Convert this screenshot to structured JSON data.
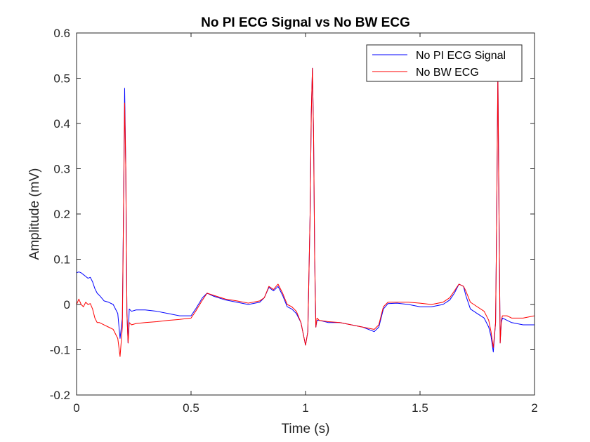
{
  "chart_data": {
    "type": "line",
    "title": "No PI ECG Signal vs No BW ECG",
    "xlabel": "Time (s)",
    "ylabel": "Amplitude (mV)",
    "xlim": [
      0,
      2
    ],
    "ylim": [
      -0.2,
      0.6
    ],
    "xticks": [
      0,
      0.5,
      1,
      1.5,
      2
    ],
    "xtick_labels": [
      "0",
      "0.5",
      "1",
      "1.5",
      "2"
    ],
    "yticks": [
      -0.2,
      -0.1,
      0,
      0.1,
      0.2,
      0.3,
      0.4,
      0.5,
      0.6
    ],
    "ytick_labels": [
      "-0.2",
      "-0.1",
      "0",
      "0.1",
      "0.2",
      "0.3",
      "0.4",
      "0.5",
      "0.6"
    ],
    "grid": false,
    "legend_position": "top-right",
    "series": [
      {
        "name": "No PI ECG Signal",
        "color": "#0000ff",
        "x": [
          0,
          0.01,
          0.02,
          0.03,
          0.04,
          0.05,
          0.06,
          0.07,
          0.08,
          0.09,
          0.1,
          0.12,
          0.14,
          0.16,
          0.18,
          0.19,
          0.2,
          0.205,
          0.21,
          0.215,
          0.22,
          0.225,
          0.23,
          0.24,
          0.26,
          0.3,
          0.35,
          0.4,
          0.45,
          0.5,
          0.52,
          0.55,
          0.57,
          0.6,
          0.65,
          0.7,
          0.75,
          0.8,
          0.82,
          0.84,
          0.86,
          0.88,
          0.9,
          0.92,
          0.94,
          0.96,
          0.98,
          1.0,
          1.01,
          1.02,
          1.025,
          1.03,
          1.035,
          1.04,
          1.045,
          1.05,
          1.06,
          1.1,
          1.15,
          1.2,
          1.25,
          1.3,
          1.32,
          1.34,
          1.36,
          1.4,
          1.45,
          1.5,
          1.55,
          1.6,
          1.63,
          1.65,
          1.67,
          1.69,
          1.7,
          1.72,
          1.75,
          1.78,
          1.8,
          1.81,
          1.82,
          1.83,
          1.835,
          1.84,
          1.845,
          1.85,
          1.855,
          1.86,
          1.88,
          1.9,
          1.95,
          2.0
        ],
        "values": [
          0.07,
          0.072,
          0.07,
          0.066,
          0.062,
          0.058,
          0.06,
          0.05,
          0.035,
          0.025,
          0.02,
          0.008,
          0.005,
          0.0,
          -0.02,
          -0.075,
          -0.03,
          0.2,
          0.478,
          0.3,
          -0.02,
          -0.085,
          -0.01,
          -0.015,
          -0.012,
          -0.012,
          -0.015,
          -0.02,
          -0.025,
          -0.025,
          -0.01,
          0.015,
          0.025,
          0.018,
          0.01,
          0.005,
          0.0,
          0.005,
          0.015,
          0.038,
          0.03,
          0.04,
          0.02,
          -0.005,
          -0.01,
          -0.02,
          -0.04,
          -0.09,
          -0.06,
          0.2,
          0.42,
          0.522,
          0.38,
          0.1,
          -0.05,
          -0.035,
          -0.035,
          -0.04,
          -0.04,
          -0.045,
          -0.05,
          -0.06,
          -0.05,
          -0.01,
          0.002,
          0.003,
          0.0,
          -0.005,
          -0.005,
          0.0,
          0.01,
          0.025,
          0.045,
          0.04,
          0.02,
          -0.01,
          -0.02,
          -0.03,
          -0.05,
          -0.07,
          -0.105,
          -0.04,
          0.2,
          0.522,
          0.2,
          -0.085,
          -0.04,
          -0.03,
          -0.035,
          -0.04,
          -0.045,
          -0.045
        ]
      },
      {
        "name": "No BW ECG",
        "color": "#ff0000",
        "x": [
          0,
          0.01,
          0.02,
          0.03,
          0.04,
          0.05,
          0.06,
          0.07,
          0.08,
          0.09,
          0.1,
          0.12,
          0.14,
          0.16,
          0.18,
          0.19,
          0.2,
          0.205,
          0.21,
          0.215,
          0.22,
          0.225,
          0.23,
          0.24,
          0.26,
          0.3,
          0.35,
          0.4,
          0.45,
          0.5,
          0.52,
          0.55,
          0.57,
          0.6,
          0.65,
          0.7,
          0.75,
          0.8,
          0.82,
          0.84,
          0.86,
          0.88,
          0.9,
          0.92,
          0.94,
          0.96,
          0.98,
          1.0,
          1.01,
          1.02,
          1.025,
          1.03,
          1.035,
          1.04,
          1.045,
          1.05,
          1.06,
          1.1,
          1.15,
          1.2,
          1.25,
          1.3,
          1.32,
          1.34,
          1.36,
          1.4,
          1.45,
          1.5,
          1.55,
          1.6,
          1.63,
          1.65,
          1.67,
          1.69,
          1.7,
          1.72,
          1.75,
          1.78,
          1.8,
          1.81,
          1.82,
          1.83,
          1.835,
          1.84,
          1.845,
          1.85,
          1.855,
          1.86,
          1.88,
          1.9,
          1.95,
          2.0
        ],
        "values": [
          0.0,
          0.012,
          0.0,
          -0.005,
          0.005,
          0.0,
          0.002,
          -0.01,
          -0.03,
          -0.04,
          -0.04,
          -0.045,
          -0.05,
          -0.055,
          -0.075,
          -0.115,
          -0.05,
          0.2,
          0.445,
          0.3,
          -0.02,
          -0.085,
          -0.04,
          -0.045,
          -0.042,
          -0.04,
          -0.038,
          -0.035,
          -0.033,
          -0.03,
          -0.015,
          0.01,
          0.025,
          0.02,
          0.012,
          0.008,
          0.003,
          0.008,
          0.015,
          0.04,
          0.033,
          0.045,
          0.025,
          0.0,
          -0.005,
          -0.015,
          -0.04,
          -0.09,
          -0.06,
          0.2,
          0.42,
          0.522,
          0.38,
          0.1,
          -0.05,
          -0.03,
          -0.035,
          -0.038,
          -0.04,
          -0.045,
          -0.05,
          -0.055,
          -0.045,
          -0.005,
          0.005,
          0.005,
          0.005,
          0.003,
          0.0,
          0.005,
          0.015,
          0.03,
          0.045,
          0.04,
          0.03,
          0.005,
          -0.005,
          -0.015,
          -0.035,
          -0.06,
          -0.095,
          -0.04,
          0.2,
          0.51,
          0.2,
          -0.085,
          -0.035,
          -0.025,
          -0.025,
          -0.03,
          -0.03,
          -0.025
        ]
      }
    ]
  }
}
